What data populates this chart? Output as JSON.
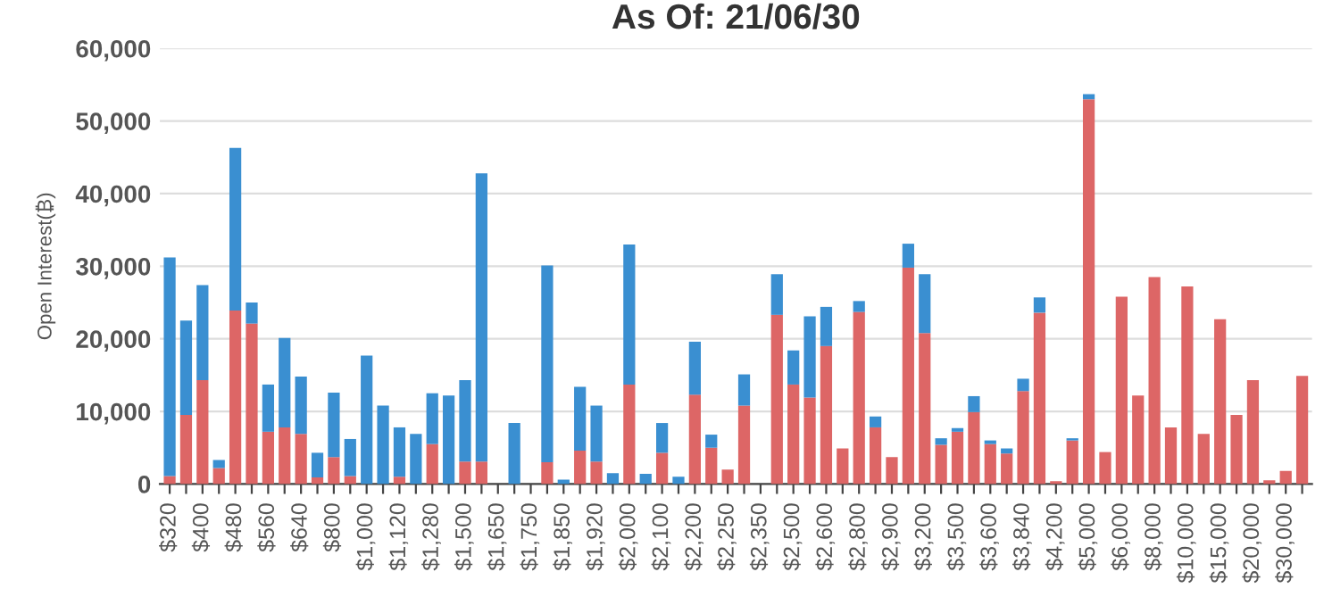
{
  "chart_data": {
    "type": "bar",
    "title": "As Of: 21/06/30",
    "ylabel": "Open Interest(₿)",
    "categories": [
      "$320",
      null,
      "$400",
      null,
      "$480",
      null,
      "$560",
      null,
      "$640",
      null,
      "$800",
      null,
      "$1,000",
      null,
      "$1,120",
      null,
      "$1,280",
      null,
      "$1,500",
      null,
      "$1,650",
      null,
      "$1,750",
      null,
      "$1,850",
      null,
      "$1,920",
      null,
      "$2,000",
      null,
      "$2,100",
      null,
      "$2,200",
      null,
      "$2,250",
      null,
      "$2,350",
      null,
      "$2,500",
      null,
      "$2,600",
      null,
      "$2,800",
      null,
      "$2,900",
      null,
      "$3,200",
      null,
      "$3,500",
      null,
      "$3,600",
      null,
      "$3,840",
      null,
      "$4,200",
      null,
      "$5,000",
      null,
      "$6,000",
      null,
      "$8,000",
      null,
      "$10,000",
      null,
      "$15,000",
      null,
      "$20,000",
      null,
      "$30,000",
      null
    ],
    "stacked": true,
    "series": [
      {
        "color": "#dd6666",
        "values": [
          1100,
          9500,
          14300,
          2200,
          23900,
          22100,
          7200,
          7800,
          6900,
          900,
          3700,
          1100,
          0,
          0,
          1000,
          0,
          5500,
          0,
          3100,
          3100,
          0,
          0,
          0,
          3000,
          0,
          4600,
          3100,
          0,
          13700,
          0,
          4300,
          0,
          12300,
          5000,
          2000,
          10800,
          0,
          23300,
          13700,
          11900,
          19000,
          4900,
          23700,
          7800,
          3700,
          29800,
          20800,
          5400,
          7200,
          9900,
          5500,
          4200,
          12800,
          23600,
          400,
          6000,
          53000,
          4400,
          25800,
          12200,
          28500,
          7800,
          27200,
          6900,
          22700,
          9500,
          14300,
          500,
          1800,
          14900
        ]
      },
      {
        "color": "#3a8fd1",
        "values": [
          30100,
          13000,
          13100,
          1100,
          22400,
          2900,
          6500,
          12300,
          7900,
          3400,
          8900,
          5100,
          17700,
          10800,
          6800,
          6900,
          7000,
          12200,
          11200,
          39700,
          0,
          8400,
          0,
          27100,
          600,
          8800,
          7700,
          1500,
          19300,
          1400,
          4100,
          1000,
          7300,
          1800,
          0,
          4300,
          0,
          5600,
          4700,
          11200,
          5400,
          0,
          1500,
          1500,
          0,
          3300,
          8100,
          900,
          500,
          2200,
          500,
          700,
          1700,
          2100,
          0,
          300,
          700,
          0,
          0,
          0,
          0,
          0,
          0,
          0,
          0,
          0,
          0,
          0,
          0,
          0
        ]
      }
    ],
    "ylim": [
      0,
      60000
    ],
    "yticks": [
      {
        "value": 0,
        "label": "0"
      },
      {
        "value": 10000,
        "label": "10,000"
      },
      {
        "value": 20000,
        "label": "20,000"
      },
      {
        "value": 30000,
        "label": "30,000"
      },
      {
        "value": 40000,
        "label": "40,000"
      },
      {
        "value": 50000,
        "label": "50,000"
      },
      {
        "value": 60000,
        "label": "60,000"
      }
    ],
    "grid": "y",
    "legend": false
  }
}
